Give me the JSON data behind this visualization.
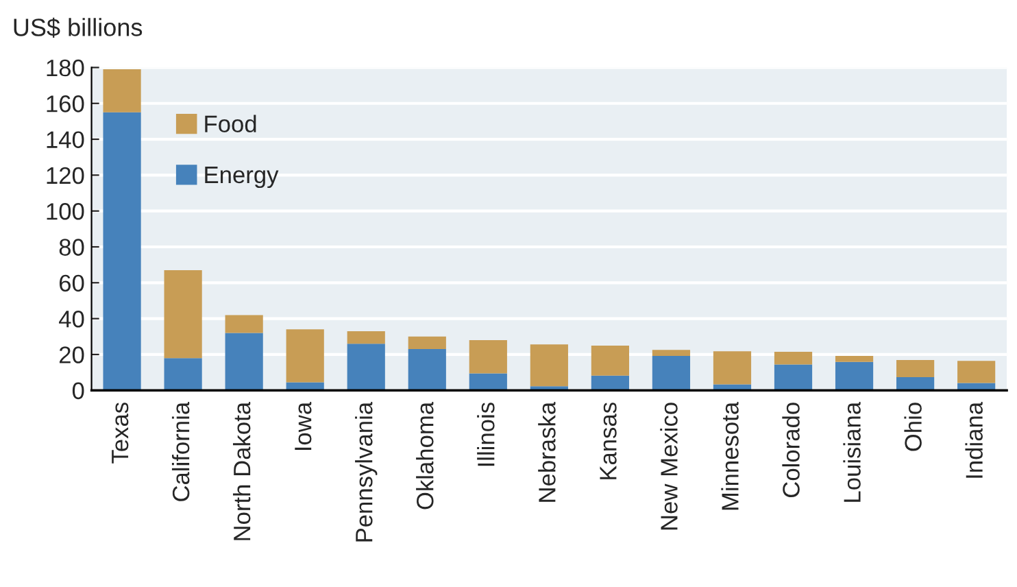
{
  "chart_data": {
    "type": "bar",
    "stacked": true,
    "ylabel": "US$ billions",
    "categories": [
      "Texas",
      "California",
      "North Dakota",
      "Iowa",
      "Pennsylvania",
      "Oklahoma",
      "Illinois",
      "Nebraska",
      "Kansas",
      "New Mexico",
      "Minnesota",
      "Colorado",
      "Louisiana",
      "Ohio",
      "Indiana"
    ],
    "series": [
      {
        "name": "Energy",
        "color": "#4682bb",
        "values": [
          155,
          18,
          32,
          4.5,
          26,
          23,
          9.5,
          2.3,
          8.2,
          19.2,
          3.3,
          14.4,
          15.9,
          7.4,
          4.1
        ]
      },
      {
        "name": "Food",
        "color": "#c89d55",
        "values": [
          24,
          49,
          10,
          29.5,
          7,
          7,
          18.5,
          23.3,
          16.7,
          3.4,
          18.5,
          7.1,
          3.3,
          9.5,
          12.3
        ]
      }
    ],
    "ylim": [
      0,
      180
    ],
    "yticks": [
      0,
      20,
      40,
      60,
      80,
      100,
      120,
      140,
      160,
      180
    ],
    "grid": "y",
    "legend": "top left"
  }
}
